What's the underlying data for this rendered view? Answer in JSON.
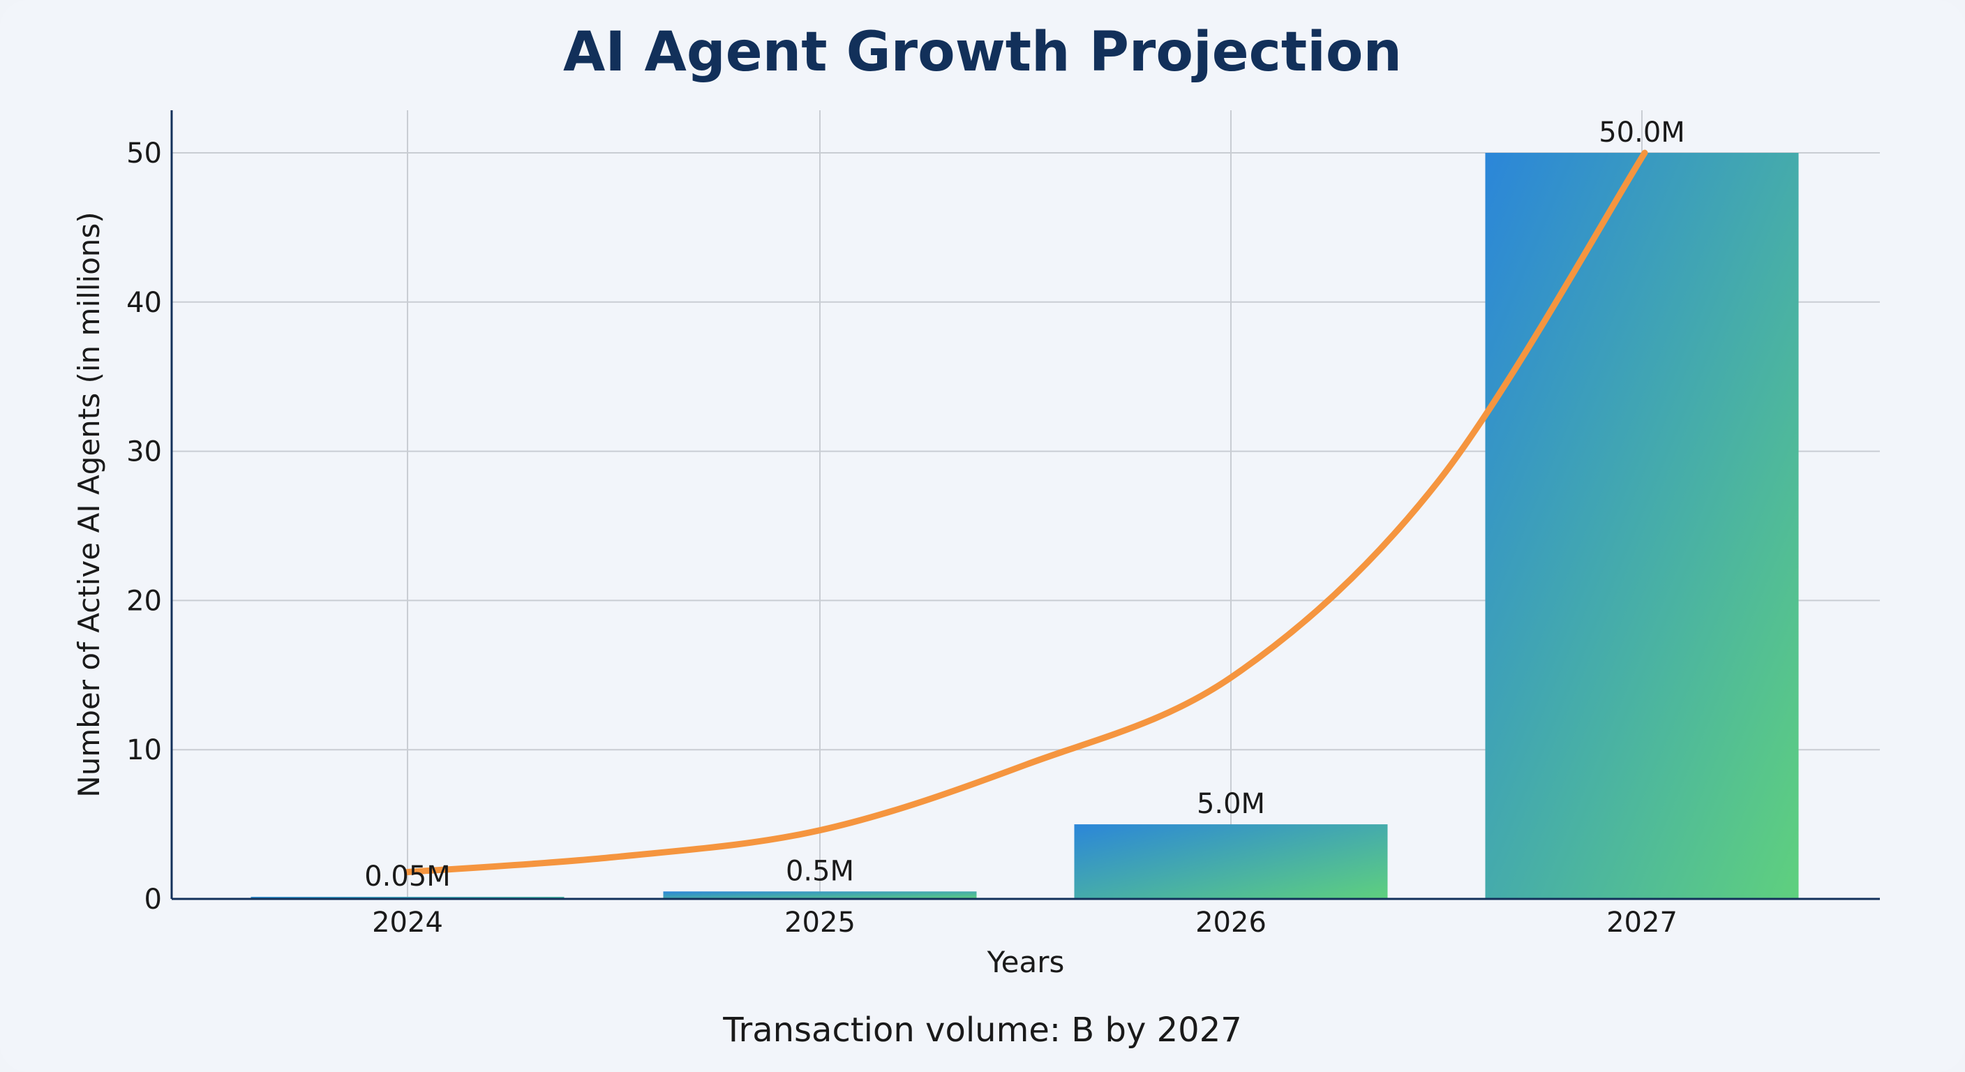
{
  "chart_data": {
    "type": "bar",
    "title": "AI Agent Growth Projection",
    "subtitle": "Transaction volume: B by 2027",
    "xlabel": "Years",
    "ylabel": "Number of Active AI Agents (in millions)",
    "categories": [
      "2024",
      "2025",
      "2026",
      "2027"
    ],
    "values": [
      0.05,
      0.5,
      5.0,
      50.0
    ],
    "data_labels": [
      "0.05M",
      "0.5M",
      "5.0M",
      "50.0M"
    ],
    "ylim": [
      0,
      53
    ],
    "yticks": [
      0,
      10,
      20,
      30,
      40,
      50
    ],
    "grid": true,
    "trend_line": {
      "x": [
        2024,
        2024.5,
        2025,
        2025.5,
        2026,
        2026.5,
        2027
      ],
      "y": [
        1.8,
        2.8,
        4.6,
        9.0,
        14.9,
        28,
        50
      ],
      "color": "#f5953f"
    },
    "bar_gradient": [
      "#2b86d9",
      "#5fd07e"
    ],
    "colors": {
      "title": "#12305a",
      "axis": "#12305a",
      "grid": "#c9cdd3"
    }
  }
}
